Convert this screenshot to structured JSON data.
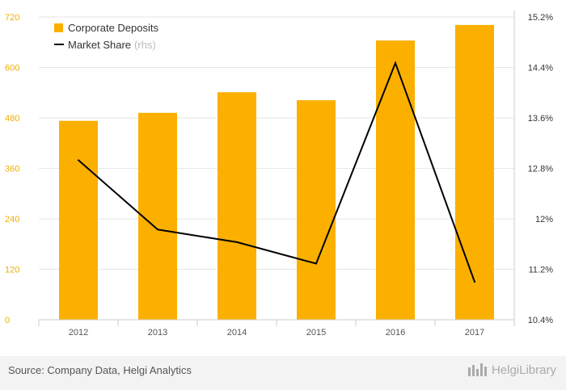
{
  "chart_data": {
    "type": "bar+line",
    "categories": [
      "2012",
      "2013",
      "2014",
      "2015",
      "2016",
      "2017"
    ],
    "series": [
      {
        "name": "Corporate Deposits",
        "axis": "left",
        "type": "bar",
        "color": "#fbb000",
        "values": [
          473,
          492,
          541,
          522,
          664,
          701
        ]
      },
      {
        "name": "Market Share",
        "suffix": "(rhs)",
        "axis": "right",
        "type": "line",
        "color": "#000000",
        "values": [
          12.93,
          11.83,
          11.63,
          11.29,
          14.47,
          11.0
        ]
      }
    ],
    "left_axis": {
      "ylim": [
        0,
        720
      ],
      "ticks": [
        "0",
        "120",
        "240",
        "360",
        "480",
        "600",
        "720"
      ]
    },
    "right_axis": {
      "ylim": [
        10.4,
        15.2
      ],
      "ticks": [
        "10.4%",
        "11.2%",
        "12%",
        "12.8%",
        "13.6%",
        "14.4%",
        "15.2%"
      ]
    },
    "legend": {
      "placement": "top-left",
      "items": [
        {
          "label": "Corporate Deposits",
          "suffix": ""
        },
        {
          "label": "Market Share",
          "suffix": "(rhs)"
        }
      ]
    }
  },
  "footer": {
    "source": "Source: Company Data, Helgi Analytics",
    "brand": "HelgiLibrary"
  }
}
